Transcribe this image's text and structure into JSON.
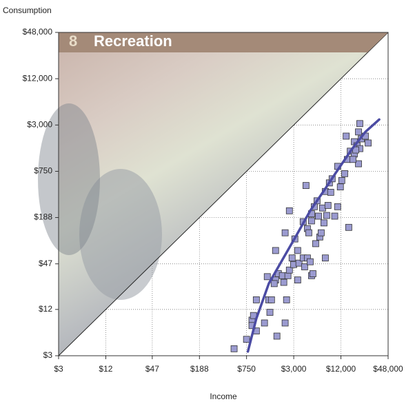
{
  "chart_data": {
    "type": "scatter",
    "section_number": "8",
    "title": "Recreation",
    "y_label": "Consumption",
    "x_label": "Income",
    "log_x": true,
    "log_y": true,
    "grid": true,
    "color": "#9b9bd0",
    "fit_color": "#4b4ba3",
    "xlim": [
      3,
      48000
    ],
    "ylim": [
      3,
      48000
    ],
    "xticks": [
      3,
      12,
      47,
      188,
      750,
      3000,
      12000,
      48000
    ],
    "yticks": [
      3,
      12,
      47,
      188,
      750,
      3000,
      12000,
      48000
    ],
    "tick_labels": [
      "$3",
      "$12",
      "$47",
      "$188",
      "$750",
      "$3,000",
      "$12,000",
      "$48,000"
    ],
    "x": [
      520,
      750,
      880,
      920,
      1000,
      1000,
      880,
      1270,
      1490,
      1830,
      1440,
      1560,
      1380,
      1760,
      1690,
      1910,
      2150,
      2240,
      2430,
      2330,
      2530,
      1760,
      2330,
      2640,
      2640,
      2860,
      2990,
      3100,
      3370,
      3370,
      3500,
      3960,
      4130,
      4300,
      4480,
      4860,
      5060,
      5270,
      7590,
      5720,
      3960,
      4480,
      4670,
      5060,
      5060,
      5490,
      5950,
      6200,
      6450,
      6720,
      7000,
      7290,
      7590,
      7900,
      8210,
      8550,
      8900,
      9270,
      10000,
      10900,
      11800,
      12300,
      10900,
      13400,
      14500,
      15100,
      15800,
      17800,
      17800,
      19300,
      20100,
      20900,
      20900,
      21800,
      20100,
      14000,
      17100,
      24600,
      26700,
      18500
    ],
    "y": [
      3.7,
      4.9,
      8.7,
      10,
      16,
      6.3,
      7.4,
      8.0,
      11,
      5.4,
      16,
      16,
      32,
      29,
      26,
      35,
      33,
      27,
      16,
      8.0,
      33,
      70,
      119,
      230,
      39,
      56,
      46,
      99,
      70,
      29,
      48,
      56,
      43,
      490,
      56,
      50,
      33,
      35,
      56,
      86,
      166,
      135,
      119,
      170,
      210,
      260,
      310,
      196,
      105,
      119,
      250,
      160,
      410,
      200,
      270,
      530,
      400,
      600,
      196,
      260,
      470,
      570,
      870,
      700,
      1070,
      140,
      1370,
      1260,
      1820,
      1610,
      2440,
      3130,
      1480,
      1980,
      940,
      2150,
      1070,
      2150,
      1750,
      1420
    ],
    "fit_x": [
      780,
      1000,
      1440,
      2150,
      3230,
      4860,
      7290,
      10900,
      16500,
      24600,
      37000
    ],
    "fit_y": [
      3.4,
      9.1,
      26,
      53,
      109,
      230,
      420,
      780,
      1450,
      2440,
      3540
    ]
  }
}
